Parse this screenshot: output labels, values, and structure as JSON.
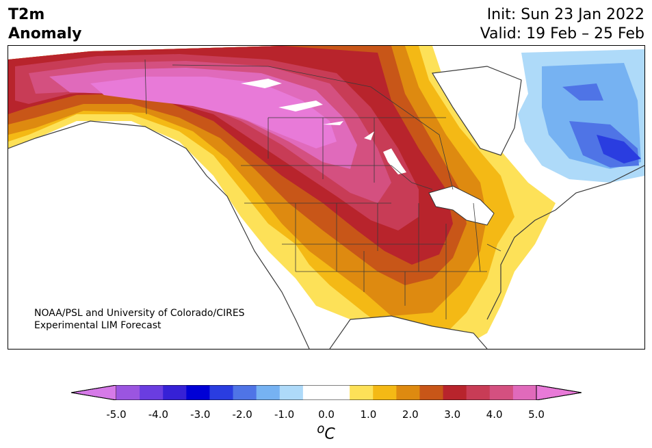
{
  "title": {
    "variable": "T2m",
    "subtitle": "Anomaly"
  },
  "header": {
    "init": "Init: Sun 23 Jan 2022",
    "valid": "Valid: 19 Feb – 25 Feb"
  },
  "credit": {
    "line1": "NOAA/PSL and University of Colorado/CIRES",
    "line2": "Experimental LIM Forecast"
  },
  "colorbar": {
    "unit_label": "oC",
    "ticks": [
      "-5.0",
      "-4.0",
      "-3.0",
      "-2.0",
      "-1.0",
      "0.0",
      "1.0",
      "2.0",
      "3.0",
      "4.0",
      "5.0"
    ],
    "colors": [
      "#d67ae8",
      "#9b55e0",
      "#6a3de0",
      "#3621d6",
      "#0000d6",
      "#2a3de0",
      "#4f74e6",
      "#76b2f2",
      "#aedaf9",
      "#ffffff",
      "#ffffff",
      "#fde158",
      "#f4b915",
      "#de8a10",
      "#c85618",
      "#b8242c",
      "#c83c56",
      "#d45080",
      "#e06abb",
      "#e87ad8"
    ]
  },
  "colors": {
    "warm_max": "#e87ad8",
    "cold_max": "#0000d6",
    "background": "#ffffff"
  }
}
